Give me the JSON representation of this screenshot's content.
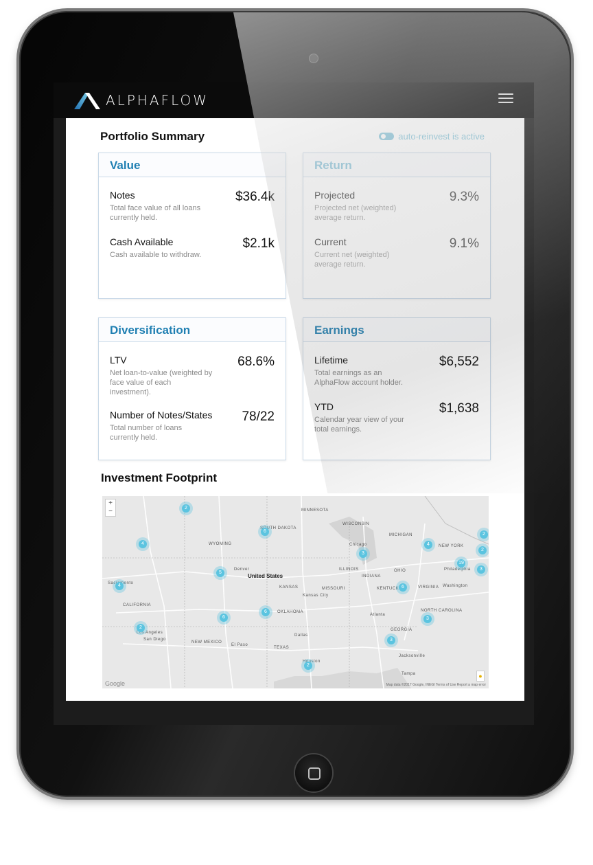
{
  "brand": {
    "name": "ALPHAFLOW"
  },
  "portfolio": {
    "title": "Portfolio Summary",
    "auto_reinvest": "auto-reinvest is active"
  },
  "cards": {
    "value": {
      "heading": "Value",
      "rows": [
        {
          "label": "Notes",
          "desc": "Total face value of all loans currently held.",
          "value": "$36.4k"
        },
        {
          "label": "Cash Available",
          "desc": "Cash available to withdraw.",
          "value": "$2.1k"
        }
      ]
    },
    "return": {
      "heading": "Return",
      "rows": [
        {
          "label": "Projected",
          "desc": "Projected net (weighted) average return.",
          "value": "9.3%"
        },
        {
          "label": "Current",
          "desc": "Current net (weighted) average return.",
          "value": "9.1%"
        }
      ]
    },
    "diversification": {
      "heading": "Diversification",
      "rows": [
        {
          "label": "LTV",
          "desc": "Net loan-to-value (weighted by face value of each investment).",
          "value": "68.6%"
        },
        {
          "label": "Number of Notes/States",
          "desc": "Total number of loans currently held.",
          "value": "78/22"
        }
      ]
    },
    "earnings": {
      "heading": "Earnings",
      "rows": [
        {
          "label": "Lifetime",
          "desc": "Total earnings as an AlphaFlow account holder.",
          "value": "$6,552"
        },
        {
          "label": "YTD",
          "desc": "Calendar year view of your total earnings.",
          "value": "$1,638"
        }
      ]
    }
  },
  "footprint": {
    "title": "Investment Footprint",
    "map": {
      "country_label": "United States",
      "labels": [
        "MINNESOTA",
        "WISCONSIN",
        "MICHIGAN",
        "SOUTH DAKOTA",
        "WYOMING",
        "ILLINOIS",
        "INDIANA",
        "OHIO",
        "NEW YORK",
        "KANSAS",
        "MISSOURI",
        "KENTUCKY",
        "VIRGINIA",
        "CALIFORNIA",
        "NEW MEXICO",
        "OKLAHOMA",
        "TEXAS",
        "GEORGIA",
        "NORTH CAROLINA",
        "Denver",
        "Chicago",
        "Kansas City",
        "Los Angeles",
        "San Diego",
        "El Paso",
        "Dallas",
        "Houston",
        "Sacramento",
        "Jacksonville",
        "Tampa",
        "Washington",
        "Philadelphia",
        "Atlanta"
      ],
      "clusters": [
        "2",
        "4",
        "6",
        "5",
        "3",
        "4",
        "6",
        "6",
        "2",
        "6",
        "4",
        "3",
        "3",
        "2",
        "19",
        "2",
        "3",
        "2"
      ],
      "zoom_in": "+",
      "zoom_out": "−",
      "provider": "Google",
      "attribution": "Map data ©2017 Google, INEGI   Terms of Use   Report a map error"
    }
  },
  "colors": {
    "accent": "#1f7fb2",
    "accent_light": "#8ec6dc",
    "cluster": "#5bc4e0"
  },
  "icons": {
    "menu": "hamburger-menu-icon",
    "toggle": "toggle-switch-icon",
    "logo": "alphaflow-logo-icon"
  }
}
